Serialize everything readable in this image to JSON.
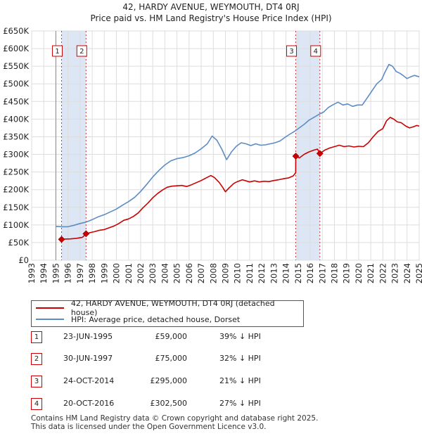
{
  "title_line1": "42, HARDY AVENUE, WEYMOUTH, DT4 0RJ",
  "title_line2": "Price paid vs. HM Land Registry's House Price Index (HPI)",
  "chart_data": {
    "type": "line",
    "title": "42, HARDY AVENUE, WEYMOUTH, DT4 0RJ — Price paid vs. HM Land Registry's House Price Index (HPI)",
    "xlabel": "",
    "ylabel": "",
    "xlim": [
      1993,
      2025
    ],
    "ylim": [
      0,
      650000
    ],
    "x_ticks": [
      "1993",
      "1994",
      "1995",
      "1996",
      "1997",
      "1998",
      "1999",
      "2000",
      "2001",
      "2002",
      "2003",
      "2004",
      "2005",
      "2006",
      "2007",
      "2008",
      "2009",
      "2010",
      "2011",
      "2012",
      "2013",
      "2014",
      "2015",
      "2016",
      "2017",
      "2018",
      "2019",
      "2020",
      "2021",
      "2022",
      "2023",
      "2024",
      "2025"
    ],
    "y_ticks": [
      {
        "value": 0,
        "label": "£0"
      },
      {
        "value": 50000,
        "label": "£50K"
      },
      {
        "value": 100000,
        "label": "£100K"
      },
      {
        "value": 150000,
        "label": "£150K"
      },
      {
        "value": 200000,
        "label": "£200K"
      },
      {
        "value": 250000,
        "label": "£250K"
      },
      {
        "value": 300000,
        "label": "£300K"
      },
      {
        "value": 350000,
        "label": "£350K"
      },
      {
        "value": 400000,
        "label": "£400K"
      },
      {
        "value": 450000,
        "label": "£450K"
      },
      {
        "value": 500000,
        "label": "£500K"
      },
      {
        "value": 550000,
        "label": "£550K"
      },
      {
        "value": 600000,
        "label": "£600K"
      },
      {
        "value": 650000,
        "label": "£650K"
      }
    ],
    "grid": true,
    "series": [
      {
        "name": "42, HARDY AVENUE, WEYMOUTH, DT4 0RJ (detached house)",
        "color": "#cc0000",
        "points": [
          [
            1995.47,
            59000
          ],
          [
            1995.8,
            60000
          ],
          [
            1996.2,
            60500
          ],
          [
            1996.7,
            62000
          ],
          [
            1997.2,
            65000
          ],
          [
            1997.49,
            75000
          ],
          [
            1997.8,
            78000
          ],
          [
            1998.2,
            81000
          ],
          [
            1998.6,
            85000
          ],
          [
            1999.0,
            87000
          ],
          [
            1999.4,
            92000
          ],
          [
            1999.8,
            97000
          ],
          [
            2000.2,
            104000
          ],
          [
            2000.6,
            113000
          ],
          [
            2001.0,
            117000
          ],
          [
            2001.4,
            124000
          ],
          [
            2001.8,
            134000
          ],
          [
            2002.2,
            149000
          ],
          [
            2002.6,
            162000
          ],
          [
            2003.0,
            177000
          ],
          [
            2003.4,
            189000
          ],
          [
            2003.8,
            199000
          ],
          [
            2004.2,
            207000
          ],
          [
            2004.6,
            210000
          ],
          [
            2005.0,
            211000
          ],
          [
            2005.4,
            212000
          ],
          [
            2005.8,
            209000
          ],
          [
            2006.2,
            214000
          ],
          [
            2006.6,
            220000
          ],
          [
            2007.0,
            226000
          ],
          [
            2007.4,
            233000
          ],
          [
            2007.8,
            240000
          ],
          [
            2008.1,
            234000
          ],
          [
            2008.5,
            220000
          ],
          [
            2008.8,
            205000
          ],
          [
            2009.0,
            194000
          ],
          [
            2009.3,
            205000
          ],
          [
            2009.7,
            218000
          ],
          [
            2010.0,
            223000
          ],
          [
            2010.4,
            228000
          ],
          [
            2010.7,
            225000
          ],
          [
            2011.0,
            222000
          ],
          [
            2011.4,
            225000
          ],
          [
            2011.8,
            222000
          ],
          [
            2012.2,
            224000
          ],
          [
            2012.6,
            223000
          ],
          [
            2013.0,
            226000
          ],
          [
            2013.4,
            228000
          ],
          [
            2013.8,
            231000
          ],
          [
            2014.2,
            233000
          ],
          [
            2014.6,
            239000
          ],
          [
            2014.8,
            248000
          ],
          [
            2014.81,
            295000
          ],
          [
            2015.1,
            290000
          ],
          [
            2015.5,
            300000
          ],
          [
            2015.9,
            307000
          ],
          [
            2016.3,
            312000
          ],
          [
            2016.6,
            315000
          ],
          [
            2016.8,
            302500
          ],
          [
            2017.2,
            312000
          ],
          [
            2017.6,
            318000
          ],
          [
            2018.0,
            322000
          ],
          [
            2018.4,
            326000
          ],
          [
            2018.8,
            322000
          ],
          [
            2019.2,
            324000
          ],
          [
            2019.6,
            321000
          ],
          [
            2020.0,
            323000
          ],
          [
            2020.4,
            322000
          ],
          [
            2020.8,
            333000
          ],
          [
            2021.2,
            350000
          ],
          [
            2021.6,
            365000
          ],
          [
            2022.0,
            373000
          ],
          [
            2022.3,
            395000
          ],
          [
            2022.6,
            405000
          ],
          [
            2022.9,
            400000
          ],
          [
            2023.2,
            392000
          ],
          [
            2023.5,
            390000
          ],
          [
            2023.9,
            380000
          ],
          [
            2024.2,
            375000
          ],
          [
            2024.5,
            378000
          ],
          [
            2024.8,
            382000
          ],
          [
            2025.0,
            380000
          ]
        ]
      },
      {
        "name": "HPI: Average price, detached house, Dorset",
        "color": "#5b8cc4",
        "points": [
          [
            1995.0,
            96000
          ],
          [
            1995.5,
            95000
          ],
          [
            1996.0,
            95000
          ],
          [
            1996.5,
            99000
          ],
          [
            1997.0,
            104000
          ],
          [
            1997.5,
            108000
          ],
          [
            1998.0,
            115000
          ],
          [
            1998.5,
            123000
          ],
          [
            1999.0,
            129000
          ],
          [
            1999.5,
            137000
          ],
          [
            2000.0,
            145000
          ],
          [
            2000.5,
            156000
          ],
          [
            2001.0,
            166000
          ],
          [
            2001.5,
            178000
          ],
          [
            2002.0,
            195000
          ],
          [
            2002.5,
            215000
          ],
          [
            2003.0,
            236000
          ],
          [
            2003.5,
            254000
          ],
          [
            2004.0,
            270000
          ],
          [
            2004.5,
            282000
          ],
          [
            2005.0,
            288000
          ],
          [
            2005.5,
            291000
          ],
          [
            2006.0,
            296000
          ],
          [
            2006.5,
            304000
          ],
          [
            2007.0,
            316000
          ],
          [
            2007.5,
            330000
          ],
          [
            2007.9,
            352000
          ],
          [
            2008.3,
            340000
          ],
          [
            2008.7,
            315000
          ],
          [
            2009.1,
            285000
          ],
          [
            2009.5,
            307000
          ],
          [
            2009.9,
            323000
          ],
          [
            2010.3,
            333000
          ],
          [
            2010.7,
            330000
          ],
          [
            2011.1,
            325000
          ],
          [
            2011.5,
            330000
          ],
          [
            2011.9,
            326000
          ],
          [
            2012.3,
            327000
          ],
          [
            2012.7,
            330000
          ],
          [
            2013.1,
            333000
          ],
          [
            2013.5,
            338000
          ],
          [
            2013.9,
            348000
          ],
          [
            2014.3,
            357000
          ],
          [
            2014.7,
            365000
          ],
          [
            2015.1,
            375000
          ],
          [
            2015.5,
            385000
          ],
          [
            2015.9,
            397000
          ],
          [
            2016.3,
            405000
          ],
          [
            2016.7,
            413000
          ],
          [
            2017.1,
            420000
          ],
          [
            2017.5,
            433000
          ],
          [
            2017.9,
            441000
          ],
          [
            2018.3,
            448000
          ],
          [
            2018.7,
            440000
          ],
          [
            2019.1,
            443000
          ],
          [
            2019.5,
            436000
          ],
          [
            2019.9,
            440000
          ],
          [
            2020.3,
            440000
          ],
          [
            2020.7,
            460000
          ],
          [
            2021.1,
            480000
          ],
          [
            2021.5,
            500000
          ],
          [
            2021.9,
            512000
          ],
          [
            2022.2,
            535000
          ],
          [
            2022.5,
            555000
          ],
          [
            2022.8,
            550000
          ],
          [
            2023.1,
            535000
          ],
          [
            2023.4,
            530000
          ],
          [
            2023.7,
            523000
          ],
          [
            2024.0,
            515000
          ],
          [
            2024.3,
            520000
          ],
          [
            2024.6,
            524000
          ],
          [
            2025.0,
            520000
          ]
        ]
      }
    ],
    "sales": [
      {
        "label": "1",
        "x": 1995.47,
        "price": 59000
      },
      {
        "label": "2",
        "x": 1997.49,
        "price": 75000
      },
      {
        "label": "3",
        "x": 2014.81,
        "price": 295000
      },
      {
        "label": "4",
        "x": 2016.8,
        "price": 302500
      }
    ],
    "shaded_ranges": [
      [
        1995.47,
        1997.49
      ],
      [
        2014.81,
        2016.8
      ]
    ]
  },
  "legend": {
    "property_label": "42, HARDY AVENUE, WEYMOUTH, DT4 0RJ (detached house)",
    "hpi_label": "HPI: Average price, detached house, Dorset"
  },
  "sales_table": [
    {
      "num": "1",
      "date": "23-JUN-1995",
      "price": "£59,000",
      "hpi": "39% ↓ HPI"
    },
    {
      "num": "2",
      "date": "30-JUN-1997",
      "price": "£75,000",
      "hpi": "32% ↓ HPI"
    },
    {
      "num": "3",
      "date": "24-OCT-2014",
      "price": "£295,000",
      "hpi": "21% ↓ HPI"
    },
    {
      "num": "4",
      "date": "20-OCT-2016",
      "price": "£302,500",
      "hpi": "27% ↓ HPI"
    }
  ],
  "footer": {
    "line1": "Contains HM Land Registry data © Crown copyright and database right 2025.",
    "line2": "This data is licensed under the Open Government Licence v3.0."
  },
  "colors": {
    "property_line": "#cc0000",
    "hpi_line": "#5b8cc4",
    "shade": "#dde6f4",
    "grid": "#dddddd"
  }
}
